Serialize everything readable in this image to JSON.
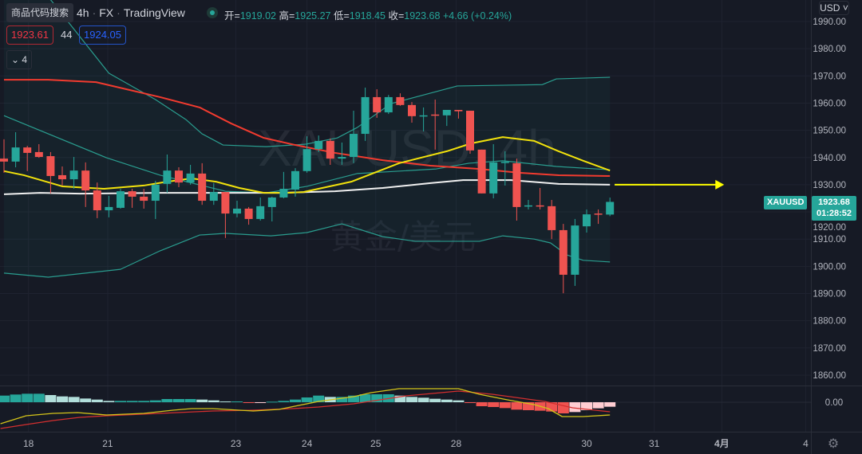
{
  "header": {
    "tooltip": "商品代码搜索",
    "interval": "4h",
    "exchange": "FX",
    "source": "TradingView",
    "ohlc": {
      "open_label": "开=",
      "open": "1919.02",
      "high_label": "高=",
      "high": "1925.27",
      "low_label": "低=",
      "low": "1918.45",
      "close_label": "收=",
      "close": "1923.68",
      "change": "+4.66 (+0.24%)"
    },
    "bid": "1923.61",
    "spread": "44",
    "ask": "1924.05",
    "indicators_collapsed": "4"
  },
  "currency_button": "USD",
  "watermark": {
    "symbol": "XAUUSD, 4h",
    "name": "黄金/美元"
  },
  "last_price": {
    "symbol": "XAUUSD",
    "price": "1923.68",
    "countdown": "01:28:52"
  },
  "macd_zero_label": "0.00",
  "colors": {
    "up": "#26a69a",
    "down": "#ef5350",
    "bg": "#161a25",
    "ma_yellow": "#f2e20c",
    "ma_red": "#f23b2f",
    "ma_white": "#f0f0f0",
    "bb": "#2a9d8f"
  },
  "chart_data": {
    "type": "candlestick",
    "title": "XAUUSD, 4h",
    "ylim": [
      1855,
      1995
    ],
    "yticks": [
      1990,
      1980,
      1970,
      1960,
      1950,
      1940,
      1930,
      1920,
      1910,
      1900,
      1890,
      1880,
      1870,
      1860
    ],
    "ytick_labels": [
      "1990.00",
      "1980.00",
      "1970.00",
      "1960.00",
      "1950.00",
      "1940.00",
      "1930.00",
      "1920.00",
      "1910.00",
      "1900.00",
      "1890.00",
      "1880.00",
      "1870.00",
      "1860.00"
    ],
    "xticks": [
      {
        "label": "18",
        "index": 2.1
      },
      {
        "label": "21",
        "index": 8.9
      },
      {
        "label": "23",
        "index": 19.9
      },
      {
        "label": "24",
        "index": 26
      },
      {
        "label": "25",
        "index": 31.9
      },
      {
        "label": "28",
        "index": 38.8
      },
      {
        "label": "30",
        "index": 50
      },
      {
        "label": "31",
        "index": 55.8
      },
      {
        "label": "4月",
        "index": 61.6
      },
      {
        "label": "4",
        "index": 68.8
      }
    ],
    "candles": [
      [
        1939.6,
        1946.7,
        1934.4,
        1938.5
      ],
      [
        1938.5,
        1949.3,
        1936.4,
        1943.7
      ],
      [
        1943.7,
        1944.3,
        1935.0,
        1941.7
      ],
      [
        1942.0,
        1944.9,
        1939.9,
        1940.2
      ],
      [
        1940.5,
        1942.0,
        1926.8,
        1933.2
      ],
      [
        1933.5,
        1936.7,
        1929.7,
        1932.0
      ],
      [
        1932.0,
        1940.2,
        1928.5,
        1935.2
      ],
      [
        1935.2,
        1938.2,
        1921.8,
        1927.9
      ],
      [
        1927.9,
        1930.8,
        1917.7,
        1920.6
      ],
      [
        1920.6,
        1925.9,
        1918.0,
        1921.8
      ],
      [
        1921.5,
        1928.5,
        1921.2,
        1927.6
      ],
      [
        1927.6,
        1928.5,
        1921.5,
        1925.6
      ],
      [
        1925.6,
        1928.5,
        1921.2,
        1924.1
      ],
      [
        1924.1,
        1931.4,
        1917.4,
        1930.0
      ],
      [
        1930.3,
        1941.1,
        1927.0,
        1935.2
      ],
      [
        1935.2,
        1936.4,
        1929.1,
        1930.8
      ],
      [
        1930.8,
        1937.3,
        1930.0,
        1934.1
      ],
      [
        1934.1,
        1937.9,
        1922.6,
        1924.1
      ],
      [
        1924.1,
        1930.6,
        1922.6,
        1927.3
      ],
      [
        1927.3,
        1927.3,
        1910.4,
        1919.4
      ],
      [
        1919.4,
        1924.1,
        1918.0,
        1921.2
      ],
      [
        1921.2,
        1921.8,
        1915.3,
        1917.4
      ],
      [
        1917.4,
        1925.3,
        1916.8,
        1922.1
      ],
      [
        1921.8,
        1925.6,
        1916.5,
        1925.3
      ],
      [
        1925.3,
        1934.7,
        1925.0,
        1928.5
      ],
      [
        1928.2,
        1936.1,
        1925.6,
        1935.0
      ],
      [
        1935.0,
        1947.8,
        1934.4,
        1943.1
      ],
      [
        1943.1,
        1948.1,
        1942.0,
        1946.1
      ],
      [
        1946.1,
        1947.0,
        1937.3,
        1939.6
      ],
      [
        1939.6,
        1945.5,
        1937.3,
        1940.2
      ],
      [
        1940.2,
        1957.2,
        1937.9,
        1948.7
      ],
      [
        1948.7,
        1965.7,
        1946.1,
        1962.2
      ],
      [
        1962.2,
        1965.1,
        1954.6,
        1956.6
      ],
      [
        1956.6,
        1963.0,
        1956.0,
        1962.2
      ],
      [
        1962.2,
        1963.6,
        1959.0,
        1959.3
      ],
      [
        1959.3,
        1960.4,
        1952.8,
        1955.2
      ],
      [
        1955.2,
        1958.4,
        1949.6,
        1955.5
      ],
      [
        1955.8,
        1961.3,
        1942.9,
        1955.5
      ],
      [
        1955.5,
        1957.5,
        1951.6,
        1957.5
      ],
      [
        1957.5,
        1957.5,
        1954.3,
        1957.0
      ],
      [
        1957.2,
        1957.2,
        1941.4,
        1942.6
      ],
      [
        1942.9,
        1942.9,
        1926.8,
        1926.8
      ],
      [
        1926.8,
        1944.9,
        1925.0,
        1938.2
      ],
      [
        1938.2,
        1942.3,
        1929.7,
        1938.4
      ],
      [
        1937.9,
        1939.6,
        1916.8,
        1921.8
      ],
      [
        1922.1,
        1924.4,
        1920.9,
        1922.4
      ],
      [
        1922.4,
        1928.8,
        1920.9,
        1922.1
      ],
      [
        1922.1,
        1924.4,
        1910.0,
        1913.3
      ],
      [
        1913.3,
        1915.6,
        1890.1,
        1896.9
      ],
      [
        1896.9,
        1917.4,
        1892.8,
        1915.0
      ],
      [
        1914.7,
        1920.9,
        1912.4,
        1919.1
      ],
      [
        1919.4,
        1920.9,
        1915.6,
        1919.1
      ],
      [
        1919.02,
        1925.27,
        1918.45,
        1923.68
      ]
    ],
    "overlays": {
      "bb_upper": [
        [
          0,
          2005
        ],
        [
          4,
          1998
        ],
        [
          9,
          1971
        ],
        [
          13,
          1961.3
        ],
        [
          15.6,
          1954
        ],
        [
          17,
          1948.7
        ],
        [
          18.8,
          1944.6
        ],
        [
          22.5,
          1944
        ],
        [
          25.9,
          1944.9
        ],
        [
          28.6,
          1947.2
        ],
        [
          30.3,
          1951
        ],
        [
          33.2,
          1959.8
        ],
        [
          38.9,
          1966.3
        ],
        [
          46.2,
          1966.8
        ],
        [
          47.4,
          1968.9
        ],
        [
          52,
          1969.5
        ]
      ],
      "bb_middle": [
        [
          0,
          1955.4
        ],
        [
          8.8,
          1939.9
        ],
        [
          13.4,
          1933.5
        ],
        [
          19,
          1927.6
        ],
        [
          22.5,
          1927
        ],
        [
          26,
          1929.4
        ],
        [
          30.3,
          1934.1
        ],
        [
          37.1,
          1935.8
        ],
        [
          39.9,
          1937.9
        ],
        [
          42.8,
          1938.8
        ],
        [
          47.4,
          1936.7
        ],
        [
          52,
          1935.5
        ]
      ],
      "bb_lower": [
        [
          0,
          1897.5
        ],
        [
          3.8,
          1896
        ],
        [
          10,
          1898.9
        ],
        [
          13.4,
          1905.7
        ],
        [
          16.8,
          1911.5
        ],
        [
          19,
          1912.1
        ],
        [
          22.9,
          1911.2
        ],
        [
          26,
          1912.4
        ],
        [
          29,
          1915.6
        ],
        [
          32.5,
          1910.9
        ],
        [
          35.3,
          1909.2
        ],
        [
          40.8,
          1909.2
        ],
        [
          42.8,
          1911.2
        ],
        [
          45.5,
          1910
        ],
        [
          46.9,
          1908.6
        ],
        [
          48.3,
          1904.2
        ],
        [
          49.7,
          1902.2
        ],
        [
          52,
          1901.6
        ]
      ],
      "ma_yellow": [
        [
          0,
          1935
        ],
        [
          1.7,
          1933.5
        ],
        [
          5,
          1929.4
        ],
        [
          8.6,
          1928.5
        ],
        [
          12,
          1929.7
        ],
        [
          14,
          1931.1
        ],
        [
          16.1,
          1932.3
        ],
        [
          18.2,
          1931.1
        ],
        [
          20.2,
          1928.8
        ],
        [
          22.3,
          1927
        ],
        [
          24.3,
          1927
        ],
        [
          25.7,
          1927.3
        ],
        [
          29.8,
          1931.1
        ],
        [
          33.9,
          1937.9
        ],
        [
          38,
          1942.3
        ],
        [
          40.1,
          1945.2
        ],
        [
          42.8,
          1947.5
        ],
        [
          45.5,
          1946.1
        ],
        [
          47.6,
          1942.3
        ],
        [
          49.7,
          1938.8
        ],
        [
          52,
          1935.2
        ]
      ],
      "ma_red": [
        [
          0,
          1968.6
        ],
        [
          3.8,
          1968.6
        ],
        [
          7.9,
          1967.7
        ],
        [
          13.4,
          1962.2
        ],
        [
          16.8,
          1958.4
        ],
        [
          19.5,
          1952.5
        ],
        [
          22.3,
          1947.2
        ],
        [
          25,
          1944.6
        ],
        [
          28.4,
          1941.7
        ],
        [
          32.5,
          1939
        ],
        [
          36.6,
          1937
        ],
        [
          40.8,
          1935.8
        ],
        [
          44.2,
          1934.4
        ],
        [
          47.6,
          1933.5
        ],
        [
          52,
          1933.2
        ]
      ],
      "ma_white": [
        [
          0,
          1926.5
        ],
        [
          3.1,
          1927
        ],
        [
          6.5,
          1926.7
        ],
        [
          13.4,
          1927
        ],
        [
          18.8,
          1927
        ],
        [
          23.6,
          1927
        ],
        [
          28.4,
          1927.6
        ],
        [
          32.5,
          1928.8
        ],
        [
          36.6,
          1930.6
        ],
        [
          39.4,
          1931.7
        ],
        [
          43.5,
          1931.7
        ],
        [
          47.6,
          1930.3
        ],
        [
          52,
          1930
        ]
      ]
    },
    "projection_arrow": {
      "price": 1930,
      "from_index": 52.4,
      "to_index": 61.8
    },
    "macd": {
      "ylim": [
        -10,
        6
      ],
      "histogram": [
        2.5,
        2.9,
        3.2,
        3.2,
        2.7,
        2.2,
        2.0,
        1.4,
        1.0,
        0.5,
        0.5,
        0.5,
        0.5,
        0.7,
        1.2,
        1.2,
        1.2,
        1.0,
        0.7,
        0.3,
        0.3,
        -0.3,
        -0.15,
        0.2,
        0.5,
        1.0,
        1.8,
        2.5,
        2.0,
        2.0,
        2.5,
        3.0,
        3.0,
        3.0,
        2.5,
        2.0,
        1.7,
        1.3,
        1.0,
        0.7,
        -0.15,
        -1.5,
        -1.8,
        -2.2,
        -2.8,
        -3.0,
        -3.2,
        -3.5,
        -4.2,
        -3.7,
        -3.0,
        -2.3,
        -1.7
      ],
      "macd_line": [
        [
          -0.3,
          -8.1
        ],
        [
          1.9,
          -5.1
        ],
        [
          4.2,
          -4.2
        ],
        [
          6.3,
          -3.9
        ],
        [
          8.8,
          -4.8
        ],
        [
          12,
          -4.2
        ],
        [
          14.5,
          -3.0
        ],
        [
          16.1,
          -2.4
        ],
        [
          17.9,
          -2.4
        ],
        [
          20.2,
          -3.0
        ],
        [
          21.4,
          -3.3
        ],
        [
          23.6,
          -2.7
        ],
        [
          27,
          0.3
        ],
        [
          30,
          2.1
        ],
        [
          31.5,
          3.6
        ],
        [
          33.9,
          5.1
        ],
        [
          39,
          5.1
        ],
        [
          40.8,
          3.0
        ],
        [
          43.2,
          0.9
        ],
        [
          45.5,
          -0.9
        ],
        [
          46.7,
          -2.4
        ],
        [
          47.9,
          -5.4
        ],
        [
          49.7,
          -5.4
        ],
        [
          52,
          -4.8
        ]
      ],
      "signal_line": [
        [
          -0.3,
          -9.9
        ],
        [
          1.9,
          -8.4
        ],
        [
          4.2,
          -6.9
        ],
        [
          6.5,
          -5.7
        ],
        [
          8.8,
          -5.1
        ],
        [
          13.4,
          -4.2
        ],
        [
          17.9,
          -3.3
        ],
        [
          21.4,
          -3.0
        ],
        [
          24.8,
          -2.4
        ],
        [
          27,
          -1.8
        ],
        [
          30,
          -0.6
        ],
        [
          34.5,
          2.4
        ],
        [
          39,
          4.2
        ],
        [
          41.9,
          3.0
        ],
        [
          46.4,
          0.3
        ],
        [
          48.8,
          -2.1
        ],
        [
          52,
          -3.6
        ]
      ]
    }
  }
}
